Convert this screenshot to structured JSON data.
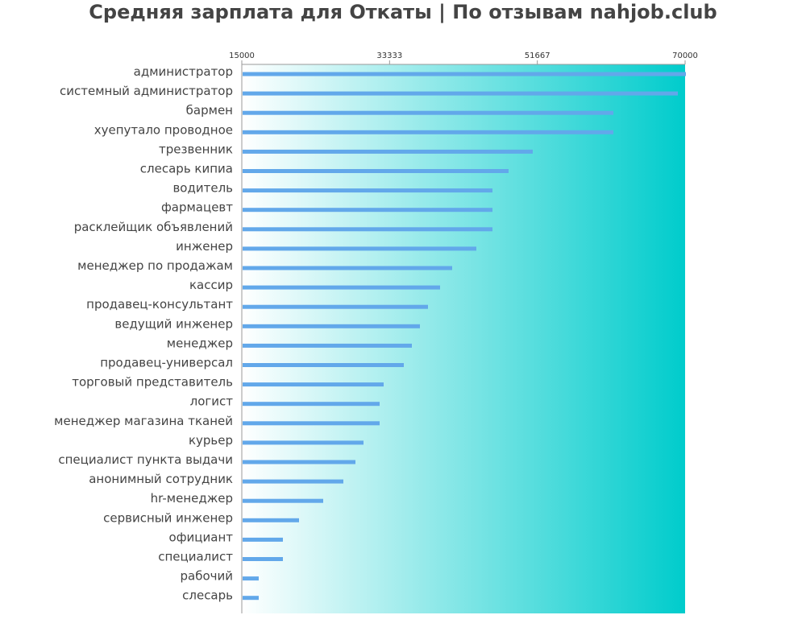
{
  "chart_data": {
    "type": "bar",
    "orientation": "horizontal",
    "title": "Средняя зарплата для Откаты | По отзывам nahjob.club",
    "xlabel": "",
    "ylabel": "",
    "xlim": [
      15000,
      70000
    ],
    "x_ticks": [
      "15000",
      "33333",
      "51667",
      "70000"
    ],
    "grid": false,
    "bar_color": "#62a8ea",
    "background_gradient": [
      "#ffffff",
      "#00cccc"
    ],
    "categories": [
      "администратор",
      "системный администратор",
      "бармен",
      "хуепутало проводное",
      "трезвенник",
      "слесарь кипиа",
      "водитель",
      "фармацевт",
      "расклейщик объявлений",
      "инженер",
      "менеджер по продажам",
      "кассир",
      "продавец-консультант",
      "ведущий инженер",
      "менеджер",
      "продавец-универсал",
      "торговый представитель",
      "логист",
      "менеджер магазина тканей",
      "курьер",
      "специалист пункта выдачи",
      "анонимный сотрудник",
      "hr-менеджер",
      "сервисный инженер",
      "официант",
      "специалист",
      "рабочий",
      "слесарь"
    ],
    "values": [
      70000,
      68000,
      60000,
      60000,
      50000,
      47000,
      45000,
      45000,
      45000,
      43000,
      40000,
      38500,
      37000,
      36000,
      35000,
      34000,
      31500,
      31000,
      31000,
      29000,
      28000,
      26500,
      24000,
      21000,
      19000,
      19000,
      16000,
      16000
    ]
  }
}
